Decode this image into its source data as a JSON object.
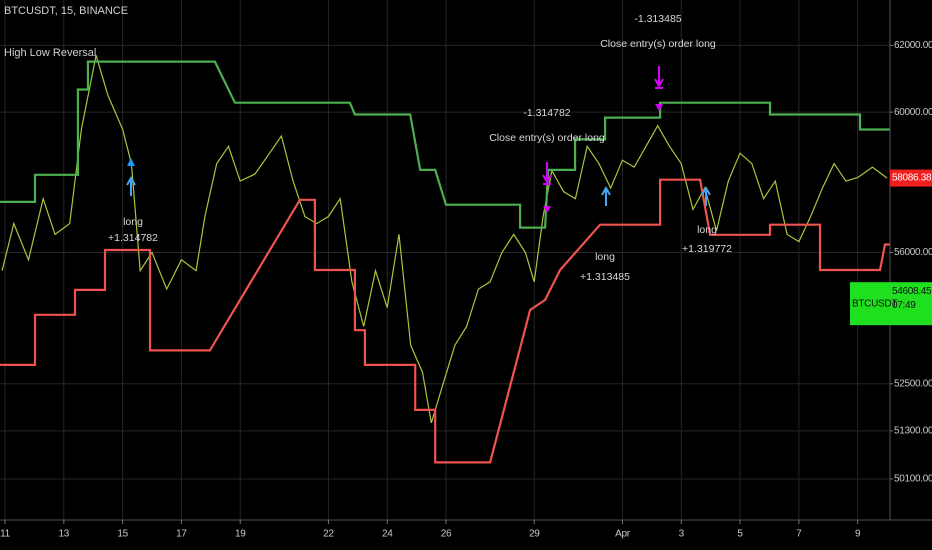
{
  "chart_data": {
    "type": "line",
    "title": "BTCUSDT, 15, BINANCE",
    "subtitle": "High Low Reversal",
    "log": true,
    "grid": true,
    "xlim": [
      10.83,
      41.1
    ],
    "ylim": [
      49100,
      63400
    ],
    "xticks": [
      11,
      13,
      15,
      17,
      19,
      22,
      24,
      26,
      29,
      {
        "value": 32,
        "label": "Apr"
      },
      {
        "value": 34,
        "label": "3"
      },
      {
        "value": 36,
        "label": "5"
      },
      {
        "value": 38,
        "label": "7"
      },
      {
        "value": 40,
        "label": "9"
      }
    ],
    "yticks": [
      {
        "value": 62000,
        "label": "62000.00"
      },
      {
        "value": 60000,
        "label": "60000.00"
      },
      {
        "value": 56000,
        "label": "56000.00"
      },
      {
        "value": 52500,
        "label": "52500.00"
      },
      {
        "value": 51300,
        "label": "51300.00"
      },
      {
        "value": 50100,
        "label": "50100.00"
      }
    ],
    "series": [
      {
        "color": "#a8c83a",
        "x": [
          10.9,
          11.3,
          11.8,
          12.3,
          12.7,
          13.2,
          13.6,
          14.1,
          14.5,
          15.0,
          15.3,
          15.6,
          16.0,
          16.5,
          17.0,
          17.5,
          17.8,
          18.2,
          18.6,
          19.0,
          19.5,
          20.0,
          20.4,
          20.8,
          21.2,
          21.6,
          22.0,
          22.4,
          22.8,
          23.2,
          23.6,
          24.0,
          24.4,
          24.8,
          25.2,
          25.5,
          25.9,
          26.3,
          26.7,
          27.1,
          27.5,
          27.9,
          28.3,
          28.7,
          29.0,
          29.3,
          29.6,
          30.0,
          30.4,
          30.8,
          31.2,
          31.6,
          32.0,
          32.4,
          32.8,
          33.2,
          33.6,
          34.0,
          34.4,
          34.8,
          35.2,
          35.6,
          36.0,
          36.4,
          36.8,
          37.2,
          37.6,
          38.0,
          38.4,
          38.8,
          39.2,
          39.6,
          40.0,
          40.5,
          41.0
        ],
        "values": [
          55500,
          56800,
          55800,
          57500,
          56500,
          56800,
          59500,
          61700,
          60500,
          59500,
          58500,
          55500,
          56000,
          55000,
          55800,
          55500,
          57000,
          58500,
          59000,
          58000,
          58200,
          58800,
          59300,
          58000,
          57000,
          56800,
          57000,
          57500,
          55200,
          54000,
          55500,
          54500,
          56500,
          53500,
          52800,
          51500,
          52500,
          53500,
          54000,
          55000,
          55200,
          56000,
          56500,
          56000,
          55200,
          57000,
          58300,
          57700,
          57500,
          59000,
          58500,
          57800,
          58600,
          58400,
          59000,
          59600,
          59000,
          58500,
          57200,
          57800,
          56600,
          58000,
          58800,
          58500,
          57500,
          58000,
          56500,
          56300,
          57000,
          57800,
          58500,
          58000,
          58100,
          58400,
          58086
        ]
      },
      {
        "color": "#4caf50",
        "x": [
          10.83,
          12.02,
          12.02,
          13.48,
          13.48,
          13.82,
          13.82,
          18.14,
          18.82,
          22.73,
          22.9,
          24.78,
          25.12,
          25.63,
          26.0,
          28.52,
          28.52,
          29.37,
          29.47,
          30.39,
          30.39,
          31.41,
          31.41,
          33.28,
          33.28,
          37.02,
          37.02,
          40.08,
          40.08,
          41.1
        ],
        "values": [
          57410,
          57410,
          58180,
          58180,
          60670,
          60670,
          61510,
          61510,
          60280,
          60280,
          59930,
          59930,
          58320,
          58320,
          57330,
          57330,
          56690,
          56690,
          58320,
          58320,
          59200,
          59200,
          59840,
          59840,
          60280,
          60280,
          59930,
          59930,
          59490,
          59490
        ]
      },
      {
        "color": "#ef5350",
        "x": [
          10.83,
          12.02,
          12.02,
          13.38,
          13.38,
          14.4,
          14.4,
          15.93,
          15.93,
          17.97,
          21.03,
          21.54,
          21.54,
          22.9,
          22.9,
          23.24,
          23.24,
          24.95,
          24.95,
          25.63,
          25.63,
          27.5,
          28.86,
          29.37,
          29.88,
          31.24,
          33.28,
          33.28,
          34.64,
          34.98,
          37.02,
          37.02,
          38.72,
          38.72,
          40.76,
          40.93,
          41.1
        ],
        "values": [
          52990,
          52990,
          54310,
          54310,
          54980,
          54980,
          56070,
          56070,
          53370,
          53370,
          57470,
          57470,
          55520,
          55520,
          53900,
          53900,
          52990,
          52990,
          51830,
          51830,
          50510,
          50510,
          54440,
          54710,
          55520,
          56770,
          56770,
          58040,
          58040,
          56490,
          56490,
          56770,
          56770,
          55520,
          55520,
          56220,
          56220
        ]
      }
    ],
    "price_tags": [
      {
        "value": 58086.38,
        "color": "#f01f1f"
      },
      {
        "value": 54608.45,
        "color": "#1fe01f",
        "symbol": "BTCUSDT",
        "countdown": "07:49"
      }
    ],
    "annotations": [
      {
        "lines": [
          "long",
          "+1.314782"
        ]
      },
      {
        "lines": [
          "-1.314782",
          "Close entry(s) order long"
        ]
      },
      {
        "lines": [
          "-1.313485",
          "Close entry(s) order long"
        ]
      },
      {
        "lines": [
          "long",
          "+1.313485"
        ]
      },
      {
        "lines": [
          "long",
          "+1.319772"
        ]
      }
    ]
  }
}
